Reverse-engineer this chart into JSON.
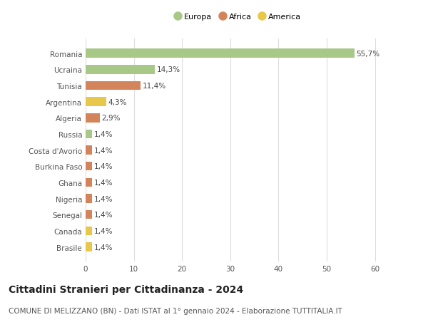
{
  "categories": [
    "Brasile",
    "Canada",
    "Senegal",
    "Nigeria",
    "Ghana",
    "Burkina Faso",
    "Costa d'Avorio",
    "Russia",
    "Algeria",
    "Argentina",
    "Tunisia",
    "Ucraina",
    "Romania"
  ],
  "values": [
    1.4,
    1.4,
    1.4,
    1.4,
    1.4,
    1.4,
    1.4,
    1.4,
    2.9,
    4.3,
    11.4,
    14.3,
    55.7
  ],
  "colors": [
    "#e8c84a",
    "#e8c84a",
    "#d4845a",
    "#d4845a",
    "#d4845a",
    "#d4845a",
    "#d4845a",
    "#a8c888",
    "#d4845a",
    "#e8c84a",
    "#d4845a",
    "#a8c888",
    "#a8c888"
  ],
  "labels": [
    "1,4%",
    "1,4%",
    "1,4%",
    "1,4%",
    "1,4%",
    "1,4%",
    "1,4%",
    "1,4%",
    "2,9%",
    "4,3%",
    "11,4%",
    "14,3%",
    "55,7%"
  ],
  "legend": [
    {
      "label": "Europa",
      "color": "#a8c888"
    },
    {
      "label": "Africa",
      "color": "#d4845a"
    },
    {
      "label": "America",
      "color": "#e8c84a"
    }
  ],
  "title": "Cittadini Stranieri per Cittadinanza - 2024",
  "subtitle": "COMUNE DI MELIZZANO (BN) - Dati ISTAT al 1° gennaio 2024 - Elaborazione TUTTITALIA.IT",
  "xlim": [
    0,
    63
  ],
  "xticks": [
    0,
    10,
    20,
    30,
    40,
    50,
    60
  ],
  "background_color": "#ffffff",
  "grid_color": "#dddddd",
  "bar_height": 0.55,
  "label_fontsize": 7.5,
  "tick_fontsize": 7.5,
  "title_fontsize": 10,
  "subtitle_fontsize": 7.5,
  "legend_fontsize": 8
}
